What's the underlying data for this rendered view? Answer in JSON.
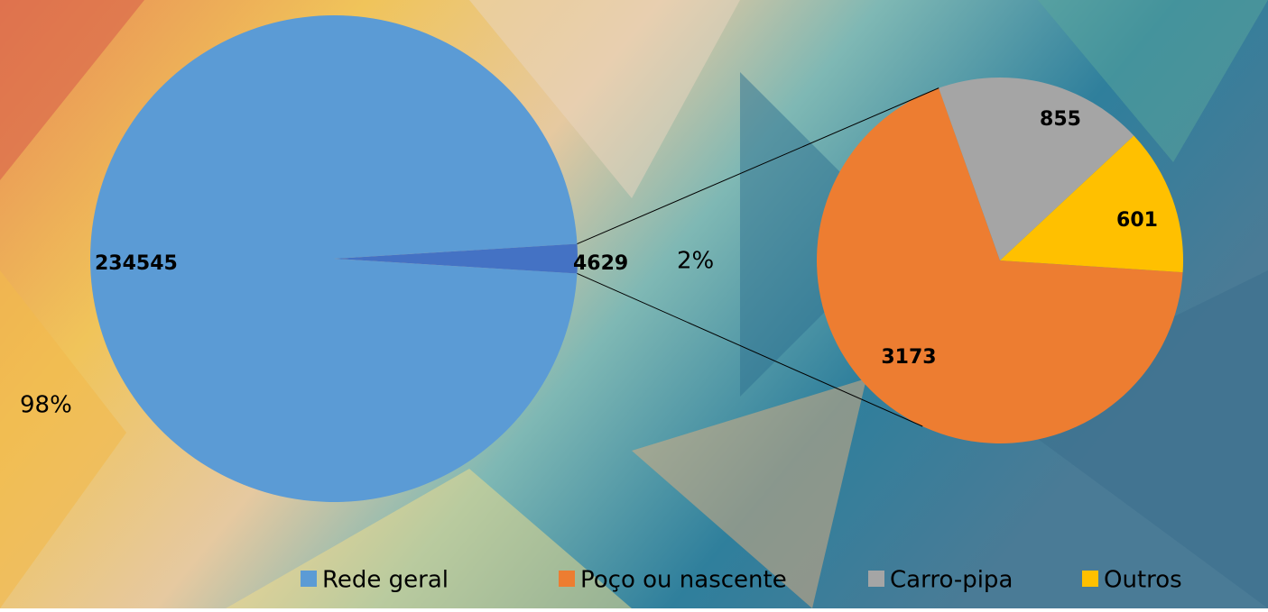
{
  "chart_data": {
    "type": "pie-of-pie",
    "categories": [
      "Rede geral",
      "Poço ou nascente",
      "Carro-pipa",
      "Outros"
    ],
    "values": [
      234545,
      3173,
      855,
      601
    ],
    "colors": [
      "#5b9bd5",
      "#ed7d31",
      "#a5a5a5",
      "#ffc000"
    ],
    "other_value": 4629,
    "other_color": "#4472c4",
    "percent_labels": [
      "98%",
      "2%"
    ]
  }
}
